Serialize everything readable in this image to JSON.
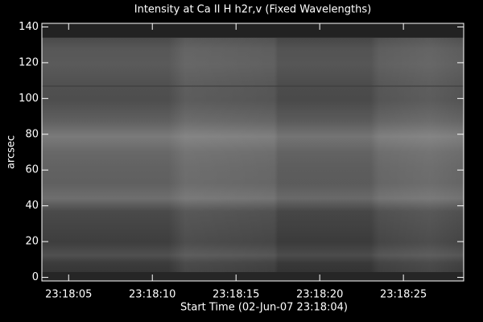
{
  "chart_data": {
    "type": "image",
    "title": "Intensity at Ca II H h2r,v (Fixed Wavelengths)",
    "xlabel": "Start Time (02-Jun-07 23:18:04)",
    "ylabel": "arcsec",
    "xlim": [
      3.4,
      28.6
    ],
    "xticks": [
      {
        "value": 5,
        "label": "23:18:05"
      },
      {
        "value": 10,
        "label": "23:18:10"
      },
      {
        "value": 15,
        "label": "23:18:15"
      },
      {
        "value": 20,
        "label": "23:18:20"
      },
      {
        "value": 25,
        "label": "23:18:25"
      }
    ],
    "ylim": [
      -2,
      142
    ],
    "yticks": [
      0,
      20,
      40,
      60,
      80,
      100,
      120,
      140
    ]
  }
}
